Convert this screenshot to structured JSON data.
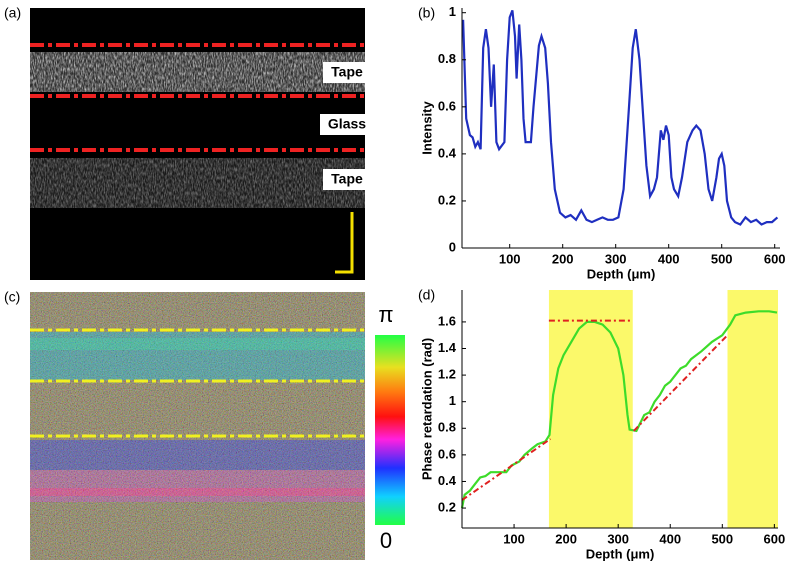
{
  "images": [
    {
      "panel_label": "(a)",
      "annotations": [
        "Tape",
        "Glass",
        "Tape"
      ]
    },
    {
      "panel_label": "(c)",
      "colorbar_labels": [
        "π",
        "0"
      ]
    }
  ],
  "chart_data": [
    {
      "type": "line",
      "panel_label": "(b)",
      "xlabel": "Depth (μm)",
      "ylabel": "Intensity",
      "xlim": [
        10,
        610
      ],
      "ylim": [
        0,
        1.02
      ],
      "xticks": [
        100,
        200,
        300,
        400,
        500,
        600
      ],
      "yticks": [
        0,
        0.2,
        0.4,
        0.6,
        0.8,
        1
      ],
      "series": [
        {
          "color": "#1f2fc0",
          "x": [
            12,
            18,
            25,
            30,
            35,
            40,
            45,
            50,
            55,
            60,
            65,
            70,
            75,
            80,
            90,
            95,
            100,
            105,
            110,
            113,
            118,
            122,
            126,
            130,
            140,
            145,
            155,
            160,
            167,
            172,
            178,
            185,
            195,
            205,
            215,
            225,
            235,
            245,
            255,
            265,
            275,
            285,
            295,
            305,
            315,
            325,
            332,
            338,
            345,
            352,
            358,
            365,
            372,
            378,
            385,
            390,
            395,
            400,
            405,
            410,
            418,
            425,
            435,
            445,
            452,
            460,
            468,
            475,
            482,
            490,
            495,
            500,
            505,
            510,
            518,
            525,
            535,
            545,
            555,
            565,
            575,
            585,
            595,
            605
          ],
          "values": [
            0.97,
            0.55,
            0.48,
            0.47,
            0.43,
            0.45,
            0.42,
            0.85,
            0.93,
            0.85,
            0.6,
            0.78,
            0.45,
            0.42,
            0.45,
            0.8,
            0.98,
            1.01,
            0.9,
            0.72,
            0.95,
            0.8,
            0.55,
            0.45,
            0.45,
            0.6,
            0.86,
            0.9,
            0.85,
            0.7,
            0.45,
            0.25,
            0.15,
            0.13,
            0.14,
            0.12,
            0.16,
            0.12,
            0.11,
            0.12,
            0.13,
            0.12,
            0.12,
            0.13,
            0.25,
            0.6,
            0.85,
            0.93,
            0.8,
            0.55,
            0.35,
            0.22,
            0.25,
            0.3,
            0.5,
            0.46,
            0.52,
            0.48,
            0.3,
            0.25,
            0.22,
            0.3,
            0.45,
            0.5,
            0.52,
            0.5,
            0.4,
            0.25,
            0.2,
            0.3,
            0.38,
            0.4,
            0.35,
            0.2,
            0.13,
            0.11,
            0.1,
            0.13,
            0.11,
            0.12,
            0.1,
            0.11,
            0.11,
            0.13
          ]
        }
      ]
    },
    {
      "type": "line",
      "panel_label": "(d)",
      "xlabel": "Depth (μm)",
      "ylabel": "Phase retardation (rad)",
      "xlim": [
        0,
        607
      ],
      "ylim": [
        0.05,
        1.84
      ],
      "xticks": [
        100,
        200,
        300,
        400,
        500,
        600
      ],
      "yticks": [
        0.2,
        0.4,
        0.6,
        0.8,
        1,
        1.2,
        1.4,
        1.6
      ],
      "highlight_color": "#fbf96a",
      "highlight_ranges": [
        [
          167,
          328
        ],
        [
          510,
          607
        ]
      ],
      "series": [
        {
          "color": "#3ddc2a",
          "x": [
            0,
            5,
            15,
            25,
            35,
            45,
            55,
            75,
            85,
            95,
            110,
            120,
            135,
            145,
            160,
            168,
            175,
            185,
            195,
            210,
            225,
            240,
            255,
            270,
            285,
            300,
            310,
            318,
            322,
            335,
            350,
            360,
            370,
            380,
            390,
            400,
            410,
            420,
            430,
            440,
            460,
            480,
            500,
            515,
            525,
            545,
            570,
            590,
            605
          ],
          "values": [
            0.2,
            0.3,
            0.33,
            0.38,
            0.43,
            0.44,
            0.47,
            0.47,
            0.47,
            0.52,
            0.55,
            0.6,
            0.65,
            0.68,
            0.7,
            0.75,
            1.05,
            1.25,
            1.35,
            1.45,
            1.55,
            1.6,
            1.6,
            1.58,
            1.52,
            1.4,
            1.2,
            0.9,
            0.79,
            0.78,
            0.9,
            0.92,
            1.0,
            1.05,
            1.12,
            1.15,
            1.2,
            1.25,
            1.27,
            1.32,
            1.38,
            1.45,
            1.5,
            1.58,
            1.65,
            1.67,
            1.68,
            1.68,
            1.67
          ]
        },
        {
          "color": "#e02020",
          "dashed": true,
          "x": [
            0,
            170
          ],
          "values": [
            0.26,
            0.72
          ]
        },
        {
          "color": "#e02020",
          "dashed": true,
          "x": [
            330,
            510
          ],
          "values": [
            0.78,
            1.5
          ]
        },
        {
          "color": "#e02020",
          "dashed": true,
          "x": [
            167,
            325
          ],
          "values": [
            1.61,
            1.61
          ]
        }
      ]
    }
  ]
}
